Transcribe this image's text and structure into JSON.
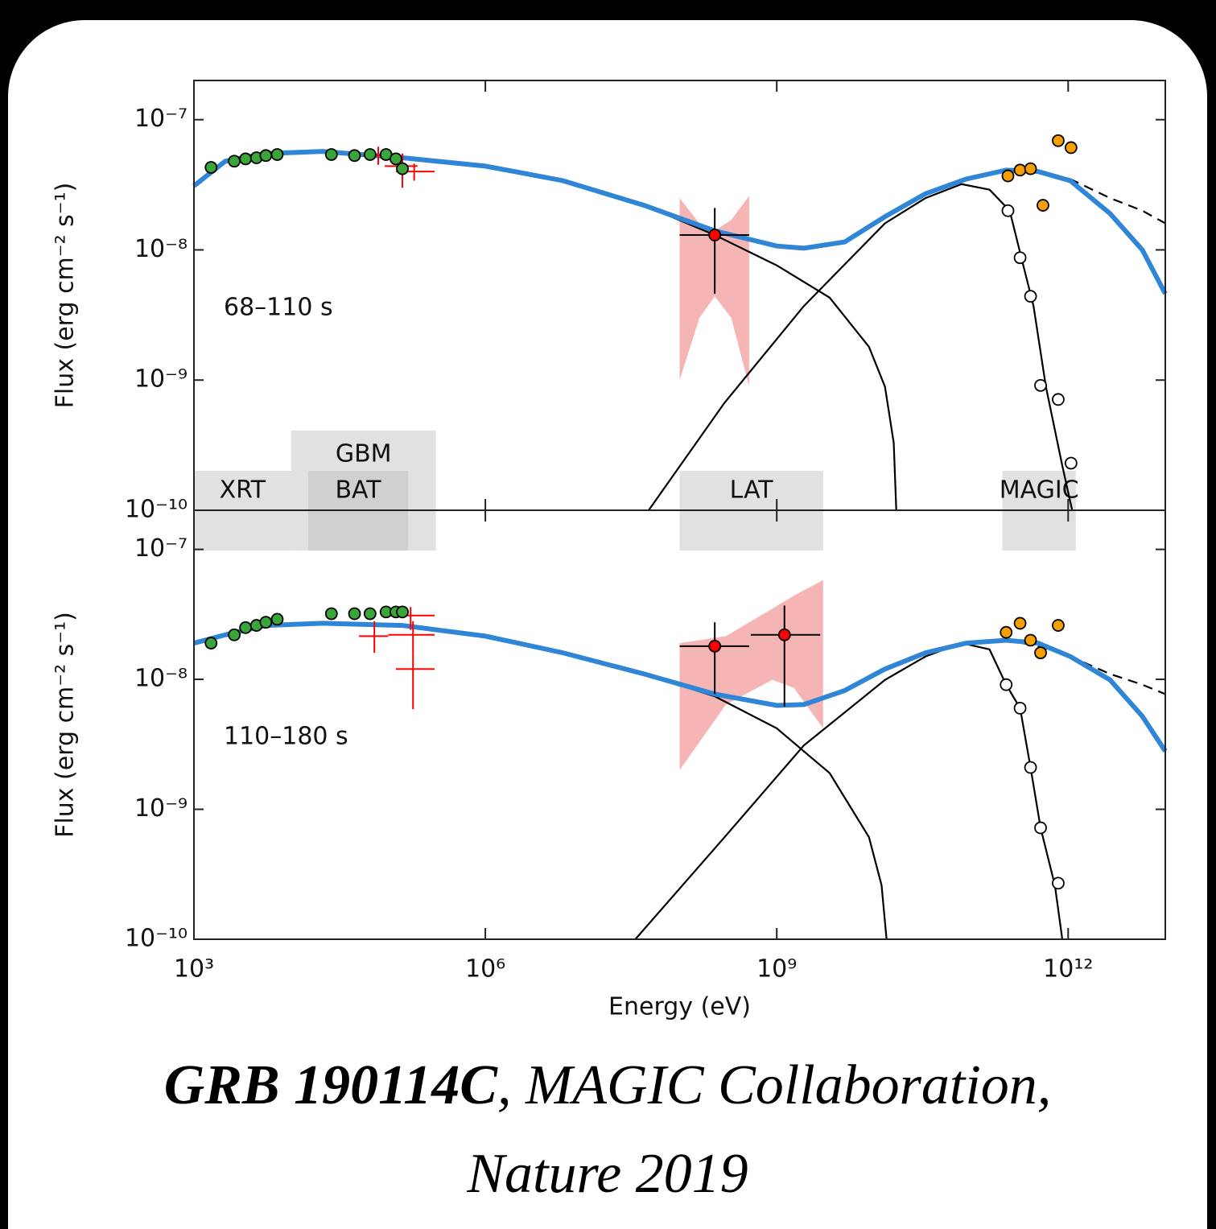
{
  "chart_data": [
    {
      "type": "scatter",
      "xscale": "log",
      "yscale": "log",
      "xlim": [
        1000.0,
        10000000000000.0
      ],
      "ylim": [
        1e-10,
        2e-07
      ],
      "yticks": [
        {
          "value": 1e-07,
          "label": "10⁻⁷"
        },
        {
          "value": 1e-08,
          "label": "10⁻⁸"
        },
        {
          "value": 1e-09,
          "label": "10⁻⁹"
        },
        {
          "value": 1e-10,
          "label": "10⁻¹⁰"
        }
      ],
      "ylabel": "Flux (erg cm⁻² s⁻¹)",
      "annotation": "68–110 s",
      "instruments": [
        {
          "label": "GBM",
          "x": [
            10000.0,
            310000.0
          ]
        },
        {
          "label": "XRT",
          "x": [
            1000.0,
            10000.0
          ]
        },
        {
          "label": "BAT",
          "x": [
            15000.0,
            160000.0
          ]
        },
        {
          "label": "LAT",
          "x": [
            100000000.0,
            3000000000.0
          ]
        },
        {
          "label": "MAGIC",
          "x": [
            210000000000.0,
            1200000000000.0
          ]
        }
      ],
      "series": [
        {
          "kind": "band",
          "color": "#f4a3a3",
          "x": [
            100000000.0,
            160000000.0,
            230000000.0,
            340000000.0,
            520000000.0
          ],
          "lo": [
            1e-09,
            3e-09,
            4.4e-09,
            3e-09,
            8.9e-10
          ],
          "hi": [
            2.5e-08,
            1.6e-08,
            1.4e-08,
            1.7e-08,
            2.6e-08
          ]
        },
        {
          "kind": "line",
          "color": "#000000",
          "x": [
            1000.0,
            2100.0,
            5500.0,
            21000.0,
            140000.0,
            1000000.0,
            6300000.0,
            43000000.0,
            230000000.0,
            1000000000.0,
            3500000000.0,
            8900000000.0,
            13000000000.0,
            16000000000.0,
            17000000000.0
          ],
          "y": [
            3.1e-08,
            4.8e-08,
            5.5e-08,
            5.7e-08,
            5.1e-08,
            4.4e-08,
            3.4e-08,
            2.2e-08,
            1.3e-08,
            7.6e-09,
            4.3e-09,
            1.8e-09,
            8.9e-10,
            3.3e-10,
            1e-10
          ]
        },
        {
          "kind": "line",
          "color": "#000000",
          "x": [
            48000000.0,
            290000000.0,
            1900000000.0,
            13000000000.0,
            34000000000.0,
            80000000000.0,
            155000000000.0,
            250000000000.0,
            330000000000.0,
            440000000000.0,
            590000000000.0,
            870000000000.0,
            1100000000000.0
          ],
          "y": [
            1e-10,
            6.7e-10,
            3.7e-09,
            1.6e-08,
            2.5e-08,
            3.2e-08,
            2.9e-08,
            2e-08,
            8.7e-09,
            3.7e-09,
            8.9e-10,
            2.2e-10,
            1e-10
          ]
        },
        {
          "kind": "line",
          "dash": true,
          "color": "#000000",
          "x": [
            230000000000.0,
            490000000000.0,
            1050000000000.0,
            2700000000000.0,
            5800000000000.0,
            10000000000000.0
          ],
          "y": [
            4e-08,
            4e-08,
            3.5e-08,
            2.5e-08,
            2e-08,
            1.6e-08
          ]
        },
        {
          "kind": "line",
          "color": "#2f86d6",
          "x": [
            1000.0,
            2100.0,
            5500.0,
            21000.0,
            140000.0,
            1000000.0,
            6300000.0,
            43000000.0,
            230000000.0,
            1000000000.0,
            1900000000.0,
            5000000000.0,
            13000000000.0,
            34000000000.0,
            89000000000.0,
            230000000000.0,
            490000000000.0,
            1050000000000.0,
            2700000000000.0,
            5800000000000.0,
            10000000000000.0
          ],
          "y": [
            3.1e-08,
            4.8e-08,
            5.5e-08,
            5.7e-08,
            5.1e-08,
            4.4e-08,
            3.4e-08,
            2.2e-08,
            1.4e-08,
            1.07e-08,
            1.03e-08,
            1.15e-08,
            1.8e-08,
            2.7e-08,
            3.5e-08,
            4.1e-08,
            4e-08,
            3.4e-08,
            1.9e-08,
            1e-08,
            4.6e-09
          ]
        },
        {
          "kind": "crosses",
          "color": "#ff0000",
          "x": [
            79000.0,
            140000.0,
            185000.0
          ],
          "y": [
            5.3e-08,
            4.4e-08,
            4e-08
          ],
          "xlo": [
            55000.0,
            92000.0,
            120000.0
          ],
          "xhi": [
            120000.0,
            200000.0,
            300000.0
          ],
          "ylo": [
            4.5e-08,
            3e-08,
            3.4e-08
          ],
          "yhi": [
            6.2e-08,
            5.5e-08,
            4.6e-08
          ]
        },
        {
          "kind": "markers",
          "color": "#3aa63a",
          "x": [
            1500.0,
            2600.0,
            3400.0,
            4400.0,
            5500.0,
            7200.0,
            26000.0,
            45000.0,
            65000.0,
            95000.0,
            120000.0,
            140000.0
          ],
          "y": [
            4.3e-08,
            4.8e-08,
            5e-08,
            5.1e-08,
            5.3e-08,
            5.4e-08,
            5.4e-08,
            5.3e-08,
            5.4e-08,
            5.4e-08,
            5e-08,
            4.2e-08
          ]
        },
        {
          "kind": "markers",
          "color": "#ff0000",
          "x": [
            230000000.0
          ],
          "y": [
            1.3e-08
          ],
          "xlo": [
            100000000.0
          ],
          "xhi": [
            520000000.0
          ],
          "ylo": [
            4.6e-09
          ],
          "yhi": [
            2.1e-08
          ]
        },
        {
          "kind": "markers",
          "color": "#f5a000",
          "x": [
            240000000000.0,
            320000000000.0,
            410000000000.0,
            550000000000.0,
            790000000000.0,
            1070000000000.0
          ],
          "y": [
            3.7e-08,
            4.1e-08,
            4.2e-08,
            2.2e-08,
            6.9e-08,
            6.1e-08
          ]
        },
        {
          "kind": "markers",
          "color": "#ffffff",
          "x": [
            240000000000.0,
            320000000000.0,
            410000000000.0,
            520000000000.0,
            790000000000.0,
            1070000000000.0
          ],
          "y": [
            2e-08,
            8.7e-09,
            4.4e-09,
            9.1e-10,
            7.1e-10,
            2.3e-10
          ]
        }
      ]
    },
    {
      "type": "scatter",
      "xscale": "log",
      "yscale": "log",
      "xlim": [
        1000.0,
        10000000000000.0
      ],
      "ylim": [
        1e-10,
        2e-07
      ],
      "xticks": [
        {
          "value": 1000.0,
          "label": "10³"
        },
        {
          "value": 1000000.0,
          "label": "10⁶"
        },
        {
          "value": 1000000000.0,
          "label": "10⁹"
        },
        {
          "value": 1000000000000.0,
          "label": "10¹²"
        }
      ],
      "yticks": [
        {
          "value": 1e-07,
          "label": "10⁻⁷"
        },
        {
          "value": 1e-08,
          "label": "10⁻⁸"
        },
        {
          "value": 1e-09,
          "label": "10⁻⁹"
        },
        {
          "value": 1e-10,
          "label": "10⁻¹⁰"
        }
      ],
      "xlabel": "Energy (eV)",
      "ylabel": "Flux (erg cm⁻² s⁻¹)",
      "annotation": "110–180 s",
      "series": [
        {
          "kind": "band",
          "color": "#f4a3a3",
          "x": [
            100000000.0,
            300000000.0,
            900000000.0,
            1500000000.0,
            3000000000.0
          ],
          "lo": [
            2e-09,
            6.4e-09,
            9.9e-09,
            8.6e-09,
            4.2e-09
          ],
          "hi": [
            1.9e-08,
            2.15e-08,
            3.5e-08,
            4.4e-08,
            5.8e-08
          ]
        },
        {
          "kind": "line",
          "color": "#000000",
          "x": [
            1000.0,
            2100.0,
            5500.0,
            21000.0,
            140000.0,
            1000000.0,
            6300000.0,
            43000000.0,
            230000000.0,
            1000000000.0,
            3500000000.0,
            8900000000.0,
            12000000000.0,
            13500000000.0
          ],
          "y": [
            1.9e-08,
            2.2e-08,
            2.6e-08,
            2.7e-08,
            2.6e-08,
            2.15e-08,
            1.6e-08,
            1.1e-08,
            7.4e-09,
            4.2e-09,
            1.9e-09,
            6.1e-10,
            2.6e-10,
            1e-10
          ]
        },
        {
          "kind": "line",
          "color": "#000000",
          "x": [
            35000000.0,
            290000000.0,
            1900000000.0,
            13000000000.0,
            34000000000.0,
            80000000000.0,
            155000000000.0,
            230000000000.0,
            320000000000.0,
            410000000000.0,
            520000000000.0,
            730000000000.0,
            870000000000.0
          ],
          "y": [
            1e-10,
            6.1e-10,
            3.1e-09,
            9.9e-09,
            1.5e-08,
            1.9e-08,
            1.7e-08,
            9.1e-09,
            6e-09,
            2.1e-09,
            7.2e-10,
            2.6e-10,
            1e-10
          ]
        },
        {
          "kind": "line",
          "dash": true,
          "color": "#000000",
          "x": [
            230000000000.0,
            490000000000.0,
            1050000000000.0,
            2700000000000.0,
            5800000000000.0,
            10000000000000.0
          ],
          "y": [
            2e-08,
            1.8e-08,
            1.5e-08,
            1.1e-08,
            9.1e-09,
            7.7e-09
          ]
        },
        {
          "kind": "line",
          "color": "#2f86d6",
          "x": [
            1000.0,
            2100.0,
            5500.0,
            21000.0,
            140000.0,
            1000000.0,
            6300000.0,
            43000000.0,
            230000000.0,
            1000000000.0,
            1900000000.0,
            5000000000.0,
            13000000000.0,
            34000000000.0,
            89000000000.0,
            230000000000.0,
            490000000000.0,
            1050000000000.0,
            2700000000000.0,
            5800000000000.0,
            10000000000000.0
          ],
          "y": [
            1.9e-08,
            2.2e-08,
            2.6e-08,
            2.7e-08,
            2.6e-08,
            2.15e-08,
            1.6e-08,
            1.1e-08,
            7.7e-09,
            6.3e-09,
            6.4e-09,
            8.2e-09,
            1.2e-08,
            1.6e-08,
            1.9e-08,
            2e-08,
            1.9e-08,
            1.5e-08,
            9.9e-09,
            5.2e-09,
            2.8e-09
          ]
        },
        {
          "kind": "crosses",
          "color": "#ff0000",
          "x": [
            72000.0,
            170000.0,
            180000.0,
            180000.0
          ],
          "y": [
            2.15e-08,
            3.1e-08,
            2.2e-08,
            1.2e-08
          ],
          "xlo": [
            50000.0,
            100000.0,
            100000.0,
            120000.0
          ],
          "xhi": [
            100000.0,
            300000.0,
            300000.0,
            300000.0
          ],
          "ylo": [
            1.6e-08,
            2.4e-08,
            1.6e-08,
            5.9e-09
          ],
          "yhi": [
            2.8e-08,
            3.6e-08,
            2.8e-08,
            1.6e-08
          ]
        },
        {
          "kind": "markers",
          "color": "#3aa63a",
          "x": [
            1500.0,
            2600.0,
            3400.0,
            4400.0,
            5500.0,
            7200.0,
            26000.0,
            45000.0,
            65000.0,
            95000.0,
            120000.0,
            140000.0
          ],
          "y": [
            1.9e-08,
            2.2e-08,
            2.5e-08,
            2.6e-08,
            2.75e-08,
            2.9e-08,
            3.2e-08,
            3.2e-08,
            3.2e-08,
            3.3e-08,
            3.3e-08,
            3.3e-08
          ]
        },
        {
          "kind": "markers",
          "color": "#ff0000",
          "x": [
            230000000.0,
            1200000000.0
          ],
          "y": [
            1.8e-08,
            2.2e-08
          ],
          "xlo": [
            100000000.0,
            540000000.0
          ],
          "xhi": [
            520000000.0,
            2800000000.0
          ],
          "ylo": [
            7.7e-09,
            6.2e-09
          ],
          "yhi": [
            2.75e-08,
            3.7e-08
          ]
        },
        {
          "kind": "markers",
          "color": "#f5a000",
          "x": [
            230000000000.0,
            320000000000.0,
            410000000000.0,
            520000000000.0,
            790000000000.0
          ],
          "y": [
            2.3e-08,
            2.7e-08,
            2e-08,
            1.6e-08,
            2.6e-08
          ]
        },
        {
          "kind": "markers",
          "color": "#ffffff",
          "x": [
            230000000000.0,
            320000000000.0,
            410000000000.0,
            520000000000.0,
            790000000000.0
          ],
          "y": [
            9.1e-09,
            6e-09,
            2.1e-09,
            7.2e-10,
            2.7e-10
          ]
        }
      ]
    }
  ],
  "caption": {
    "bold": "GRB 190114C",
    "rest": ", MAGIC Collaboration,",
    "line2": "Nature 2019"
  }
}
